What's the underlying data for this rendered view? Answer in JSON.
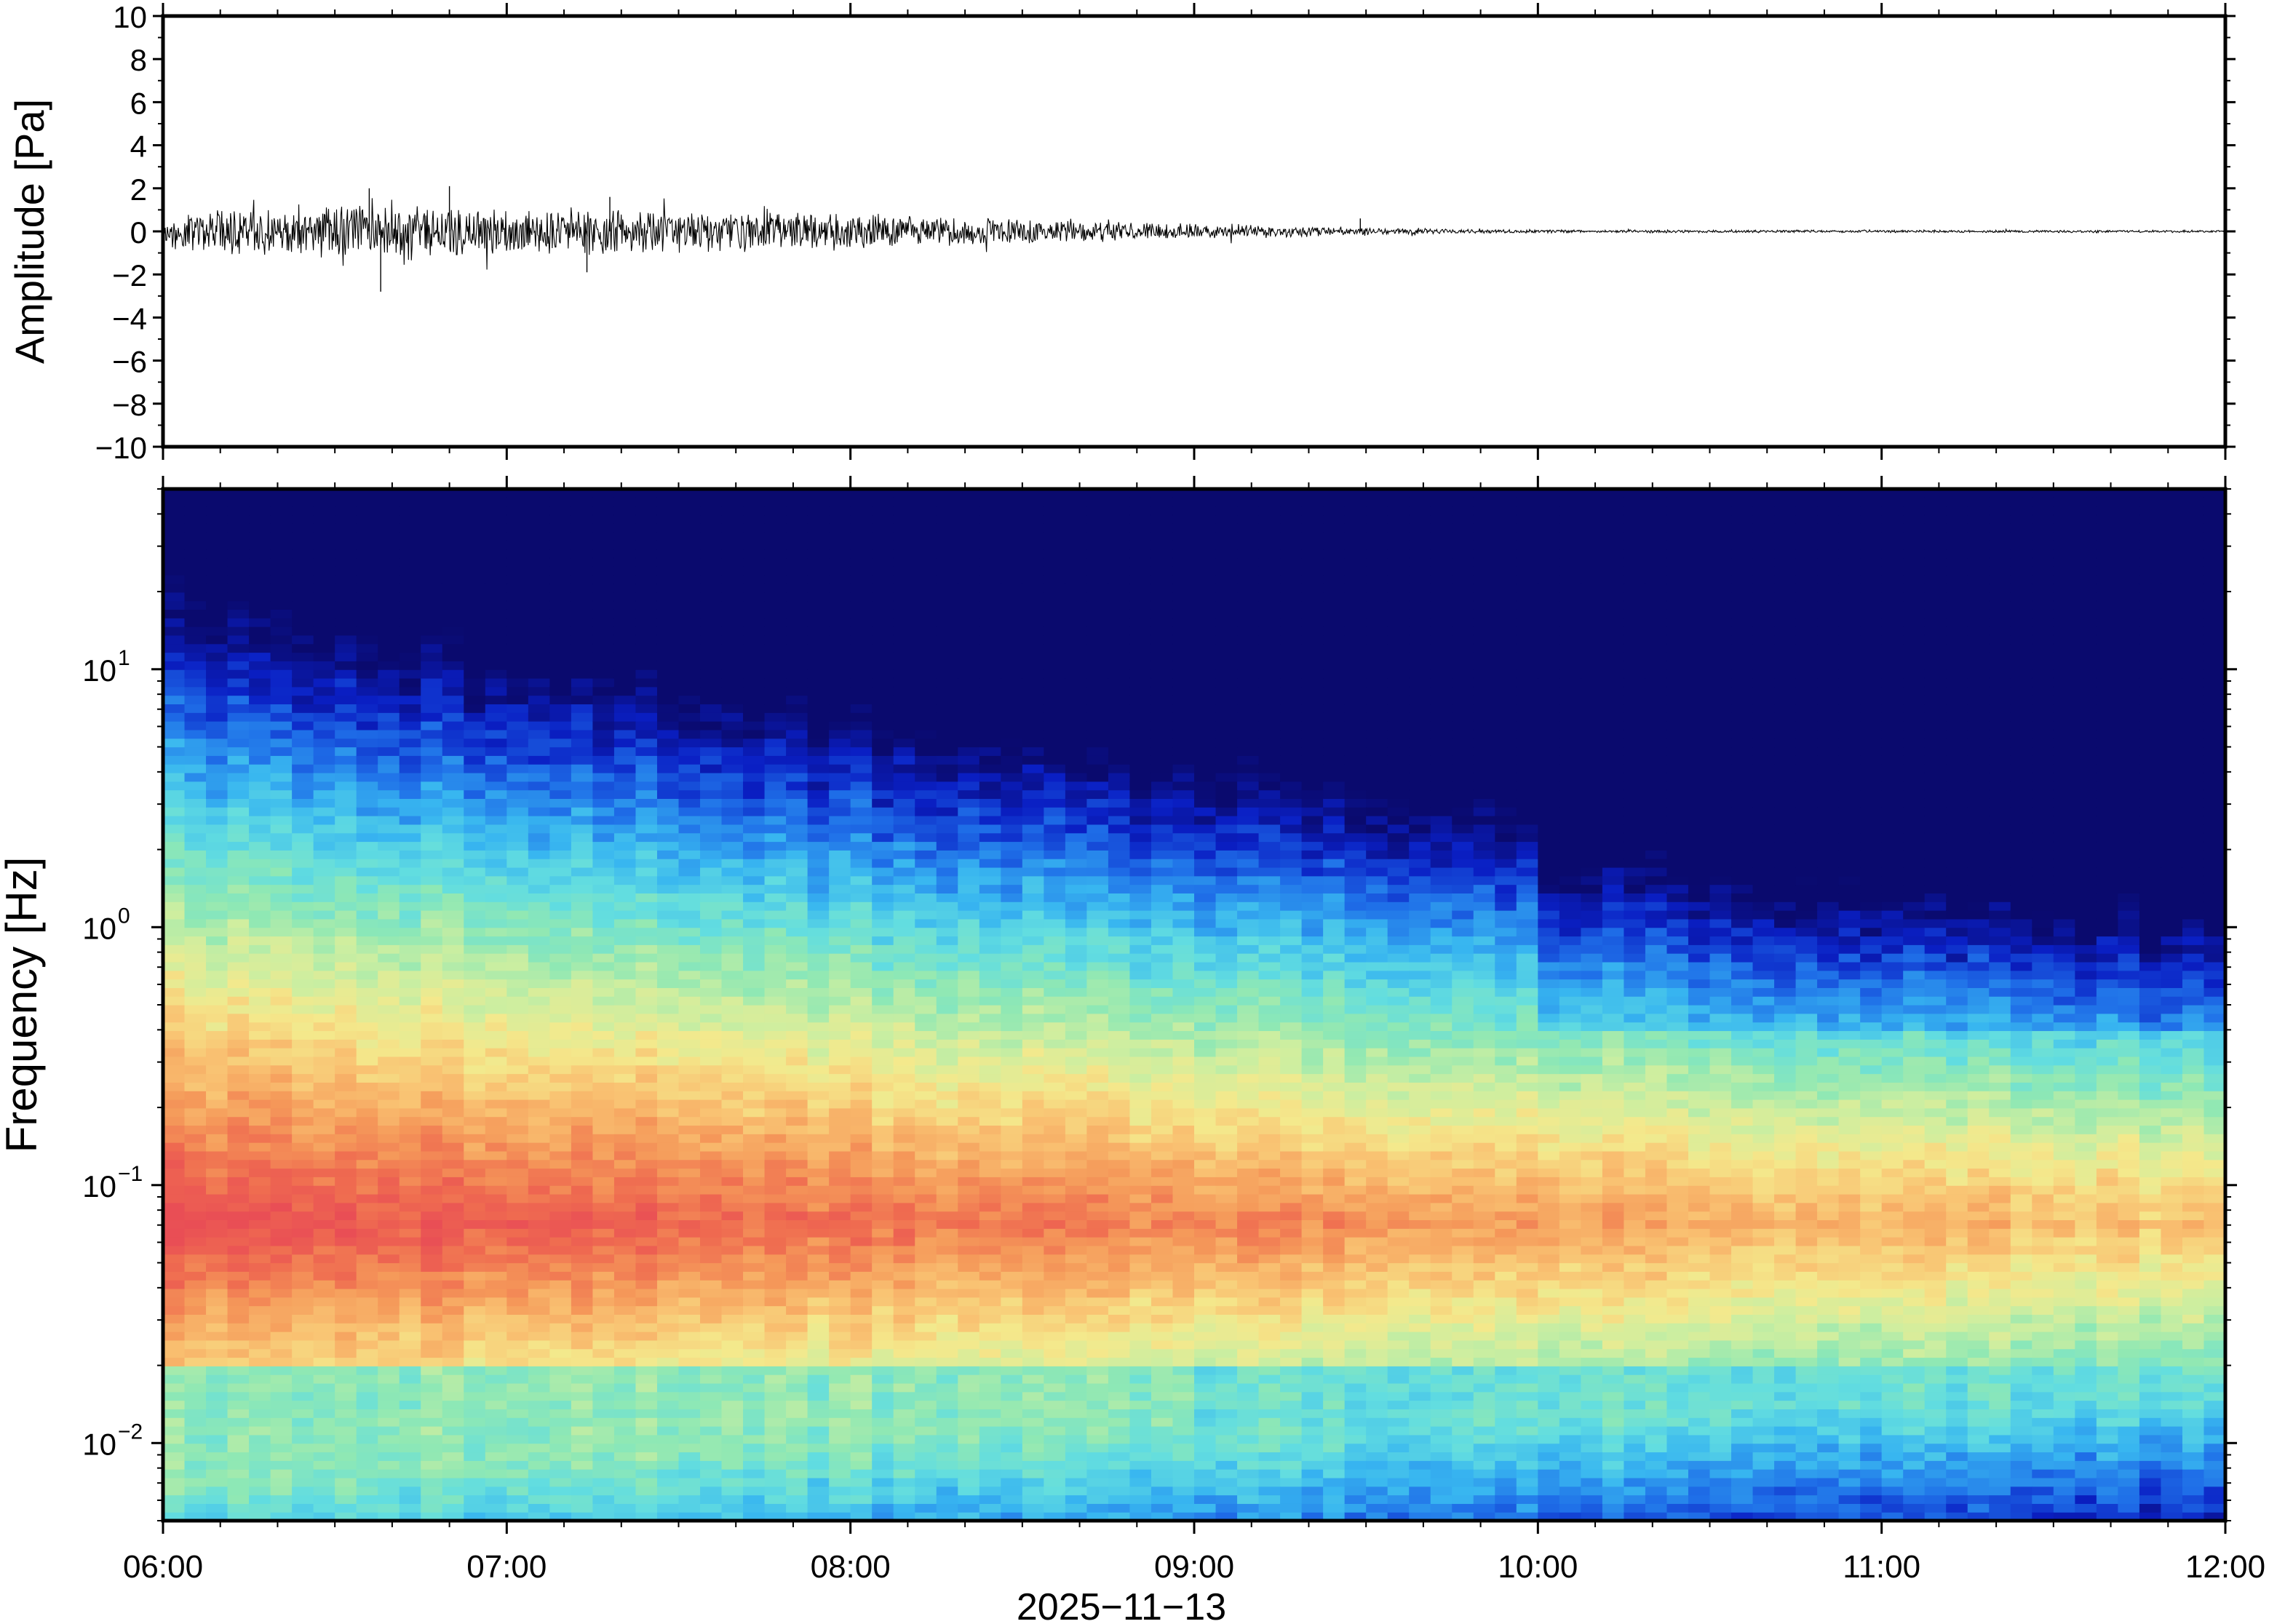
{
  "chart_data": [
    {
      "type": "line",
      "panel": "waveform",
      "ylabel": "Amplitude [Pa]",
      "ylim": [
        -10,
        10
      ],
      "yticks": [
        "10",
        "8",
        "6",
        "4",
        "2",
        "0",
        "−2",
        "−4",
        "−6",
        "−8",
        "−10"
      ],
      "series": [
        {
          "color": "#000000",
          "envelope_time_hours": [
            6.0,
            6.25,
            6.5,
            6.67,
            6.75,
            7.0,
            7.25,
            7.5,
            7.75,
            8.0,
            8.25,
            8.5,
            8.75,
            9.0,
            9.25,
            9.5,
            9.75,
            10.0,
            10.5,
            11.0,
            11.5,
            12.0
          ],
          "envelope_amplitude_pa": [
            1.1,
            1.2,
            1.3,
            1.5,
            1.3,
            1.2,
            1.2,
            1.1,
            1.0,
            0.9,
            0.75,
            0.65,
            0.5,
            0.4,
            0.3,
            0.2,
            0.12,
            0.08,
            0.07,
            0.07,
            0.06,
            0.06
          ],
          "peaks": [
            {
              "x": "06:36",
              "y": 2.0
            },
            {
              "x": "06:38",
              "y": -2.8
            },
            {
              "x": "06:50",
              "y": 2.1
            },
            {
              "x": "07:14",
              "y": -1.9
            },
            {
              "x": "07:18",
              "y": 1.6
            },
            {
              "x": "09:29",
              "y": 0.6
            }
          ]
        }
      ],
      "grid": false
    },
    {
      "type": "heatmap",
      "panel": "spectrogram",
      "ylabel": "Frequency [Hz]",
      "yscale": "log",
      "ylim": [
        0.005,
        50
      ],
      "yticks": [
        {
          "base": "10",
          "exp": "1",
          "value": 10
        },
        {
          "base": "10",
          "exp": "0",
          "value": 1
        },
        {
          "base": "10",
          "exp": "−1",
          "value": 0.1
        },
        {
          "base": "10",
          "exp": "−2",
          "value": 0.01
        }
      ],
      "xlabel": "2025−11−13",
      "xticks": [
        "06:00",
        "07:00",
        "08:00",
        "09:00",
        "10:00",
        "11:00",
        "12:00"
      ],
      "xlim": [
        "06:00",
        "12:00"
      ],
      "colormap": [
        "#0a0a6e",
        "#0a1fc4",
        "#1f6fe8",
        "#38b6f0",
        "#62dde0",
        "#8fe8b4",
        "#cdeea0",
        "#f4e98c",
        "#f9c272",
        "#f59a5a",
        "#ef6b50",
        "#e94e55"
      ],
      "grid": false
    }
  ]
}
